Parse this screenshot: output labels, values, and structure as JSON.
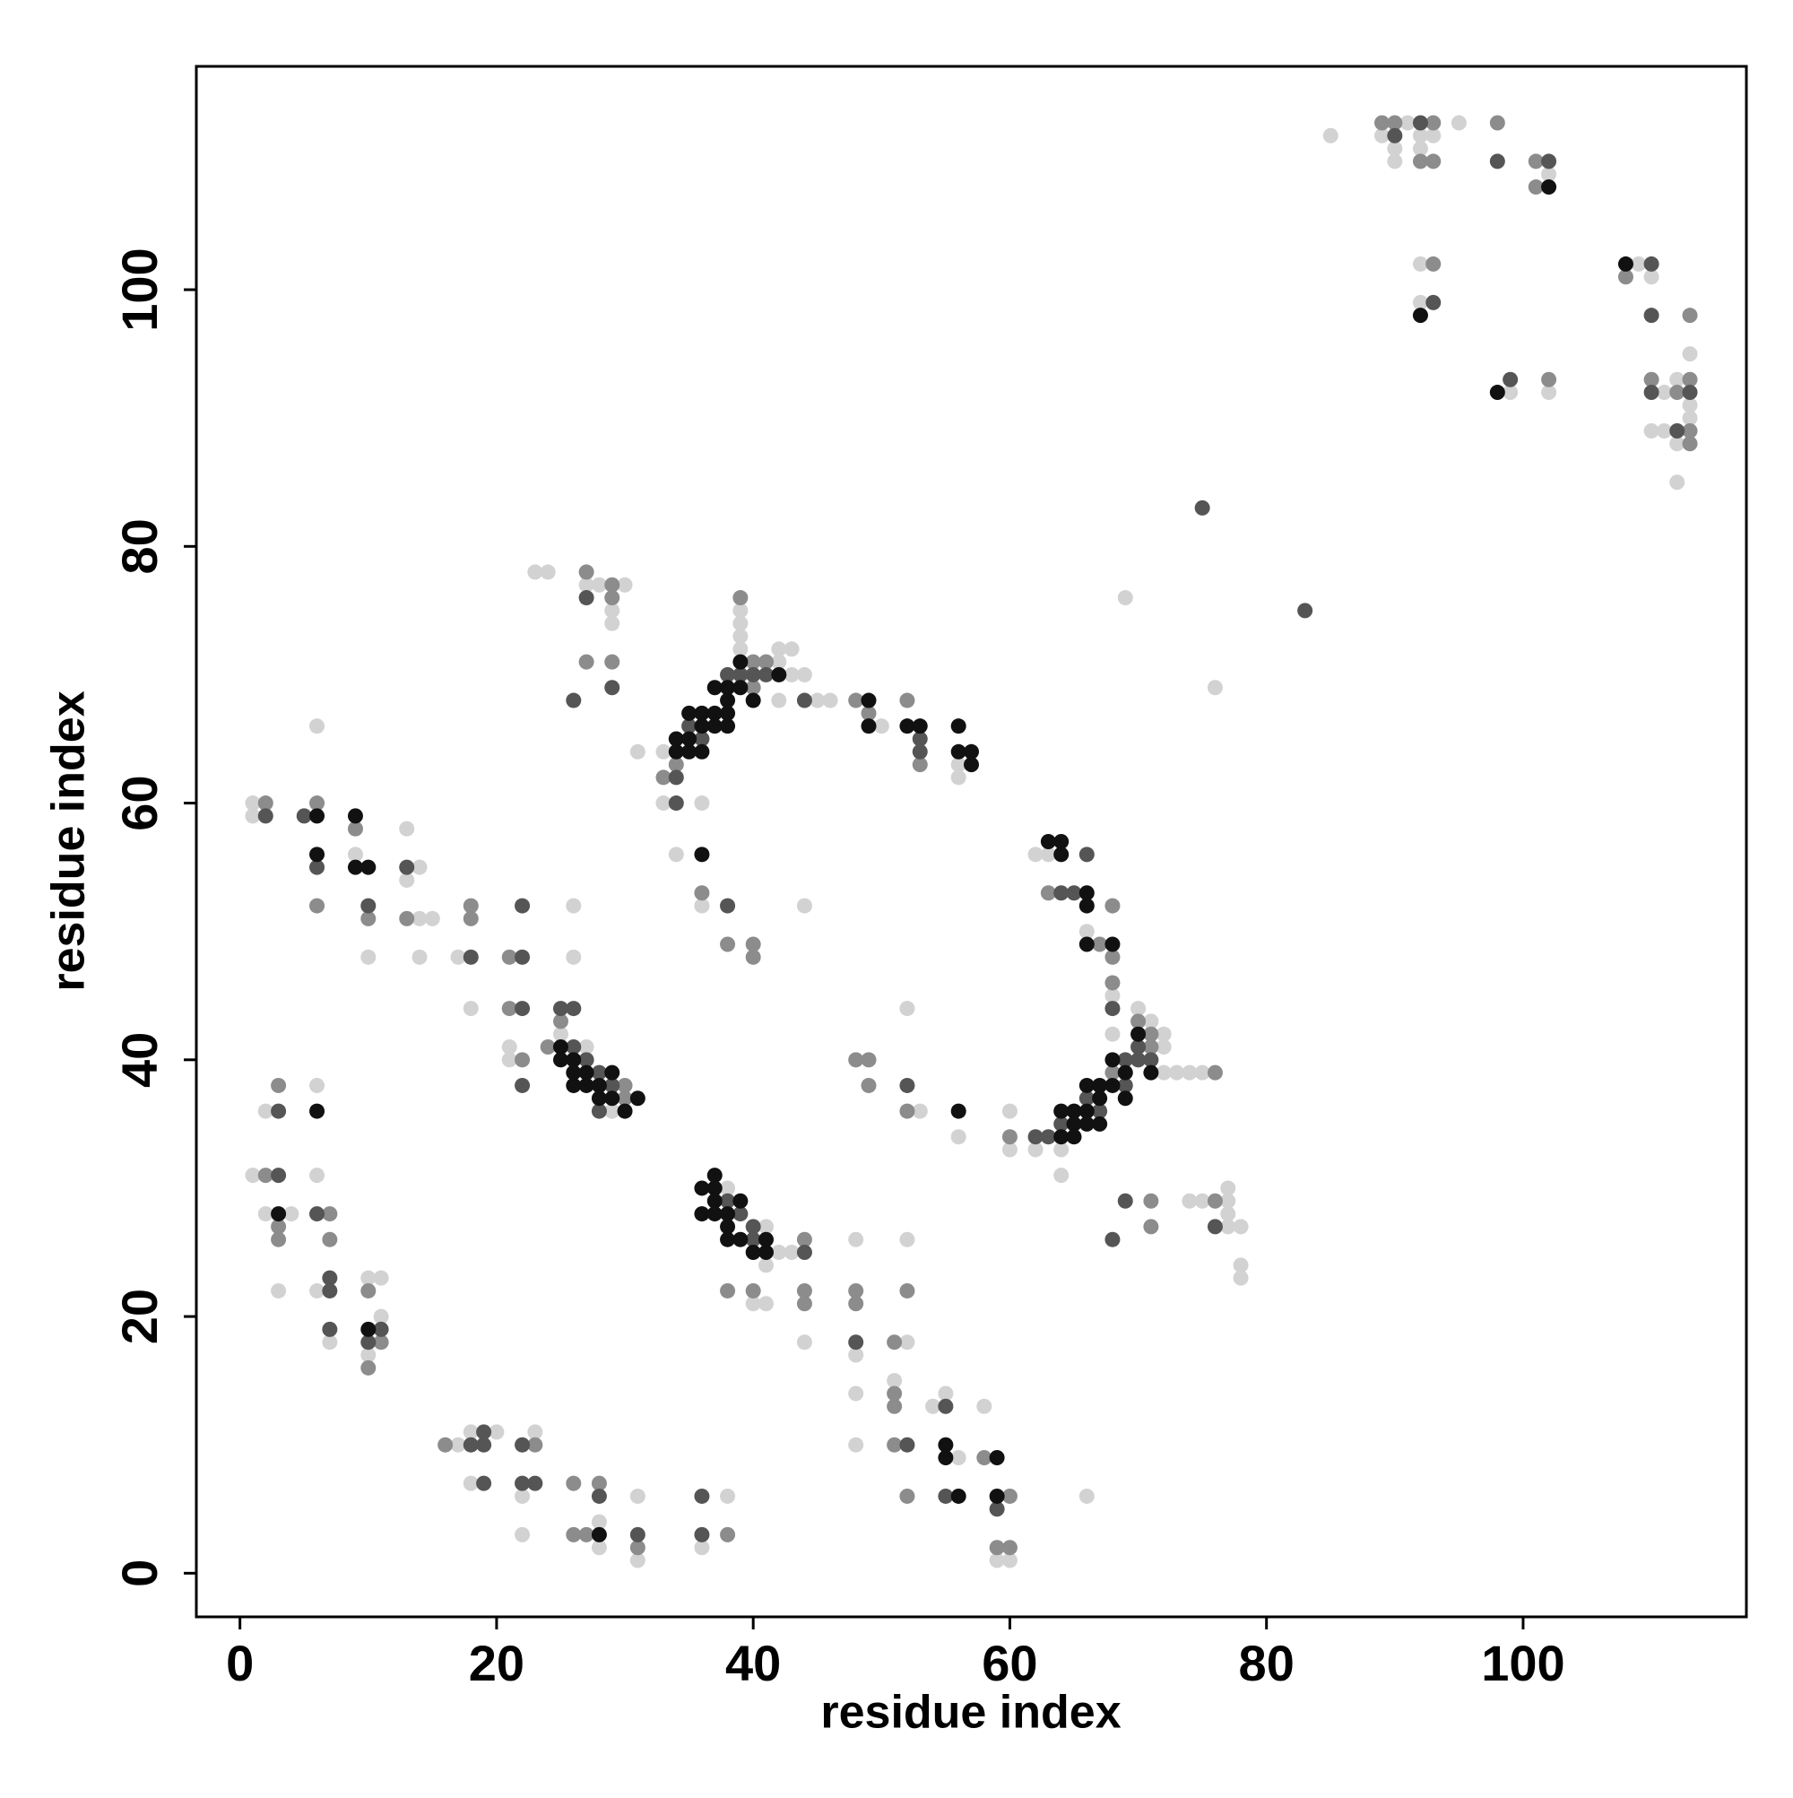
{
  "chart_data": {
    "type": "scatter",
    "xlabel": "residue index",
    "ylabel": "residue index",
    "xlim": [
      -3.4,
      117.4
    ],
    "ylim": [
      -3.4,
      117.4
    ],
    "xticks": [
      0,
      20,
      40,
      60,
      80,
      100
    ],
    "yticks": [
      0,
      20,
      40,
      60,
      80,
      100
    ],
    "series": [
      {
        "color": "#d2d2d2",
        "x": [
          85,
          91,
          95,
          89,
          92,
          93,
          90,
          92,
          90,
          102,
          92,
          109,
          110,
          92,
          113,
          112,
          99,
          102,
          111,
          113,
          113,
          110,
          111,
          112,
          112,
          69,
          76,
          23,
          24,
          27,
          28,
          30,
          29,
          29,
          39,
          39,
          39,
          39,
          42,
          43,
          42,
          43,
          44,
          42,
          45,
          46,
          50,
          31,
          33,
          56,
          56,
          33,
          36,
          34,
          36,
          44,
          62,
          63,
          66,
          68,
          68,
          70,
          71,
          72,
          72,
          72,
          73,
          74,
          75,
          62,
          64,
          60,
          64,
          60,
          56,
          53,
          52,
          74,
          75,
          77,
          77,
          77,
          77,
          78,
          78,
          78,
          6,
          1,
          1,
          13,
          9,
          14,
          13,
          14,
          15,
          10,
          14,
          17,
          26,
          26,
          18,
          21,
          21,
          25,
          27,
          29,
          6,
          2,
          1,
          6,
          2,
          4,
          3,
          6,
          10,
          11,
          11,
          7,
          10,
          38,
          41,
          42,
          43,
          41,
          40,
          41,
          48,
          52,
          44,
          48,
          52,
          48,
          51,
          54,
          55,
          58,
          48,
          56,
          66,
          59,
          60,
          18,
          20,
          17,
          23,
          18,
          22,
          22,
          28,
          28,
          31,
          31,
          38,
          36
        ],
        "values": [
          112,
          113,
          113,
          112,
          112,
          112,
          111,
          111,
          110,
          109,
          102,
          102,
          101,
          99,
          95,
          93,
          92,
          92,
          92,
          91,
          90,
          89,
          89,
          88,
          85,
          76,
          69,
          78,
          78,
          77,
          77,
          77,
          75,
          74,
          75,
          74,
          73,
          72,
          72,
          72,
          71,
          70,
          70,
          68,
          68,
          68,
          66,
          64,
          64,
          63,
          62,
          60,
          60,
          56,
          52,
          52,
          56,
          56,
          50,
          45,
          42,
          44,
          43,
          42,
          41,
          39,
          39,
          39,
          39,
          33,
          33,
          33,
          31,
          36,
          34,
          36,
          44,
          29,
          29,
          30,
          29,
          28,
          27,
          27,
          24,
          23,
          66,
          60,
          59,
          58,
          56,
          55,
          54,
          51,
          51,
          48,
          48,
          48,
          52,
          48,
          44,
          41,
          40,
          42,
          41,
          36,
          38,
          36,
          31,
          31,
          28,
          28,
          22,
          22,
          23,
          23,
          20,
          18,
          17,
          30,
          27,
          25,
          25,
          24,
          21,
          21,
          26,
          26,
          18,
          17,
          18,
          14,
          15,
          13,
          14,
          13,
          10,
          9,
          6,
          1,
          1,
          11,
          11,
          10,
          11,
          7,
          6,
          3,
          4,
          2,
          6,
          1,
          6,
          2
        ]
      },
      {
        "color": "#8c8c8c",
        "x": [
          89,
          90,
          93,
          98,
          92,
          93,
          101,
          101,
          93,
          108,
          113,
          102,
          110,
          113,
          112,
          113,
          113,
          27,
          29,
          29,
          27,
          29,
          39,
          40,
          41,
          40,
          48,
          52,
          49,
          34,
          53,
          33,
          36,
          38,
          40,
          40,
          63,
          68,
          67,
          68,
          68,
          70,
          71,
          71,
          76,
          68,
          60,
          52,
          48,
          49,
          49,
          71,
          71,
          76,
          2,
          6,
          9,
          6,
          10,
          13,
          18,
          18,
          21,
          21,
          22,
          24,
          25,
          30,
          30,
          3,
          2,
          7,
          3,
          3,
          7,
          10,
          11,
          10,
          44,
          38,
          40,
          44,
          44,
          48,
          52,
          48,
          51,
          51,
          51,
          51,
          58,
          52,
          60,
          59,
          60,
          16,
          23,
          26,
          28,
          26,
          27,
          31,
          38
        ],
        "values": [
          113,
          113,
          113,
          113,
          110,
          110,
          110,
          108,
          102,
          101,
          98,
          93,
          93,
          93,
          92,
          89,
          88,
          78,
          77,
          76,
          71,
          71,
          76,
          71,
          71,
          69,
          68,
          68,
          67,
          63,
          63,
          62,
          53,
          49,
          49,
          48,
          53,
          52,
          49,
          48,
          46,
          43,
          42,
          41,
          39,
          39,
          34,
          36,
          40,
          40,
          38,
          29,
          27,
          29,
          60,
          60,
          58,
          52,
          51,
          51,
          52,
          51,
          48,
          44,
          40,
          41,
          43,
          38,
          37,
          38,
          31,
          28,
          27,
          26,
          26,
          22,
          18,
          16,
          26,
          22,
          22,
          22,
          21,
          22,
          22,
          21,
          18,
          14,
          13,
          10,
          9,
          6,
          6,
          2,
          2,
          10,
          10,
          7,
          7,
          3,
          3,
          2,
          3
        ]
      },
      {
        "color": "#555555",
        "x": [
          92,
          90,
          98,
          102,
          110,
          93,
          110,
          99,
          110,
          113,
          112,
          75,
          83,
          38,
          39,
          40,
          41,
          44,
          35,
          36,
          53,
          53,
          34,
          34,
          38,
          27,
          26,
          29,
          66,
          64,
          65,
          68,
          70,
          69,
          70,
          71,
          69,
          66,
          67,
          64,
          63,
          62,
          52,
          69,
          68,
          76,
          2,
          5,
          6,
          13,
          10,
          18,
          22,
          22,
          22,
          22,
          25,
          26,
          26,
          27,
          28,
          29,
          28,
          3,
          3,
          6,
          7,
          7,
          7,
          11,
          10,
          38,
          39,
          40,
          40,
          44,
          48,
          55,
          52,
          55,
          59,
          19,
          18,
          19,
          22,
          19,
          22,
          23,
          28,
          31,
          36,
          36
        ],
        "values": [
          113,
          112,
          110,
          110,
          102,
          99,
          98,
          93,
          92,
          92,
          89,
          83,
          75,
          70,
          70,
          70,
          70,
          68,
          66,
          65,
          65,
          64,
          62,
          60,
          52,
          76,
          68,
          69,
          56,
          53,
          53,
          44,
          41,
          40,
          40,
          40,
          38,
          37,
          36,
          35,
          34,
          34,
          38,
          29,
          26,
          27,
          59,
          59,
          55,
          55,
          52,
          48,
          48,
          52,
          44,
          38,
          44,
          44,
          41,
          40,
          39,
          38,
          36,
          36,
          31,
          28,
          22,
          23,
          19,
          19,
          18,
          29,
          28,
          27,
          26,
          25,
          18,
          13,
          10,
          6,
          5,
          11,
          10,
          10,
          10,
          7,
          7,
          7,
          6,
          3,
          6,
          3
        ]
      },
      {
        "color": "#111111",
        "x": [
          102,
          108,
          92,
          98,
          39,
          42,
          37,
          38,
          39,
          38,
          40,
          49,
          36,
          37,
          38,
          35,
          36,
          37,
          38,
          49,
          52,
          53,
          56,
          34,
          35,
          34,
          35,
          36,
          56,
          57,
          57,
          36,
          63,
          64,
          64,
          66,
          66,
          66,
          68,
          70,
          68,
          71,
          69,
          66,
          67,
          68,
          69,
          67,
          65,
          66,
          64,
          65,
          66,
          67,
          64,
          65,
          56,
          6,
          9,
          6,
          9,
          10,
          25,
          25,
          26,
          26,
          27,
          29,
          26,
          27,
          28,
          28,
          29,
          31,
          30,
          6,
          3,
          10,
          37,
          36,
          37,
          37,
          39,
          36,
          37,
          38,
          38,
          38,
          39,
          41,
          40,
          41,
          55,
          55,
          59,
          56,
          59,
          28
        ],
        "values": [
          108,
          102,
          98,
          92,
          71,
          70,
          69,
          69,
          69,
          68,
          68,
          68,
          67,
          67,
          67,
          67,
          66,
          66,
          66,
          66,
          66,
          66,
          66,
          65,
          65,
          64,
          64,
          64,
          64,
          64,
          63,
          56,
          57,
          57,
          56,
          53,
          52,
          49,
          49,
          42,
          40,
          39,
          39,
          38,
          38,
          38,
          37,
          37,
          36,
          36,
          36,
          35,
          35,
          35,
          34,
          34,
          36,
          59,
          59,
          56,
          55,
          55,
          41,
          40,
          40,
          39,
          39,
          39,
          38,
          38,
          38,
          37,
          37,
          37,
          36,
          36,
          28,
          19,
          31,
          30,
          30,
          29,
          29,
          28,
          28,
          28,
          27,
          26,
          26,
          26,
          25,
          25,
          10,
          9,
          9,
          6,
          6,
          3
        ]
      }
    ]
  }
}
